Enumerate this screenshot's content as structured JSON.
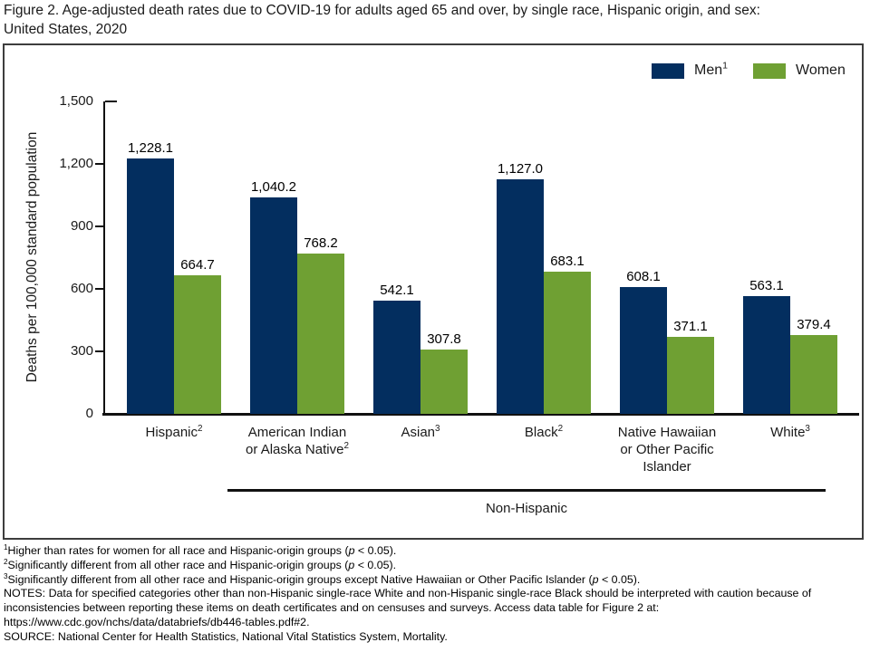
{
  "title": "Figure 2. Age-adjusted death rates due to COVID-19 for adults aged 65 and over, by single race, Hispanic origin, and sex:\nUnited States, 2020",
  "chart_data": {
    "type": "bar",
    "title": "Age-adjusted death rates due to COVID-19 for adults aged 65 and over, by single race, Hispanic origin, and sex: United States, 2020",
    "categories": [
      "Hispanic^{2}",
      "American Indian or Alaska Native^{2}",
      "Asian^{3}",
      "Black^{2}",
      "Native Hawaiian or Other Pacific Islander",
      "White^{3}"
    ],
    "series": [
      {
        "name": "Men^{1}",
        "color": "#032E5F",
        "values": [
          1228.1,
          1040.2,
          542.1,
          1127.0,
          608.1,
          563.1
        ]
      },
      {
        "name": "Women",
        "color": "#6FA033",
        "values": [
          664.7,
          768.2,
          307.8,
          683.1,
          371.1,
          379.4
        ]
      }
    ],
    "ylabel": "Deaths per 100,000 standard population",
    "xlabel": "",
    "yticks": [
      0,
      300,
      600,
      900,
      1200,
      1500
    ],
    "ylim": [
      0,
      1500
    ],
    "grid": false,
    "legend_position": "top-right",
    "value_labels": true,
    "secondary_axis_group": {
      "label": "Non-Hispanic",
      "covers_categories": [
        1,
        2,
        3,
        4,
        5
      ]
    }
  },
  "colors": {
    "men": "#032E5F",
    "women": "#6FA033",
    "axis": "#111111",
    "frame_border": "#3d3d3d"
  },
  "footnotes": {
    "f1": "^{1}Higher than rates for women for all race and Hispanic-origin groups (//p// < 0.05).",
    "f2": "^{2}Significantly different from all other race and Hispanic-origin groups (//p// < 0.05).",
    "f3": "^{3}Significantly different from all other race and Hispanic-origin groups except Native Hawaiian or Other Pacific Islander (//p// < 0.05).",
    "notes": "NOTES: Data for specified categories other than non-Hispanic single-race White and non-Hispanic single-race Black should be interpreted with caution because of inconsistencies between reporting these items on death certificates and on censuses and surveys. Access data table for Figure 2 at: https://www.cdc.gov/nchs/data/databriefs/db446-tables.pdf#2.",
    "source": "SOURCE: National Center for Health Statistics, National Vital Statistics System, Mortality."
  }
}
